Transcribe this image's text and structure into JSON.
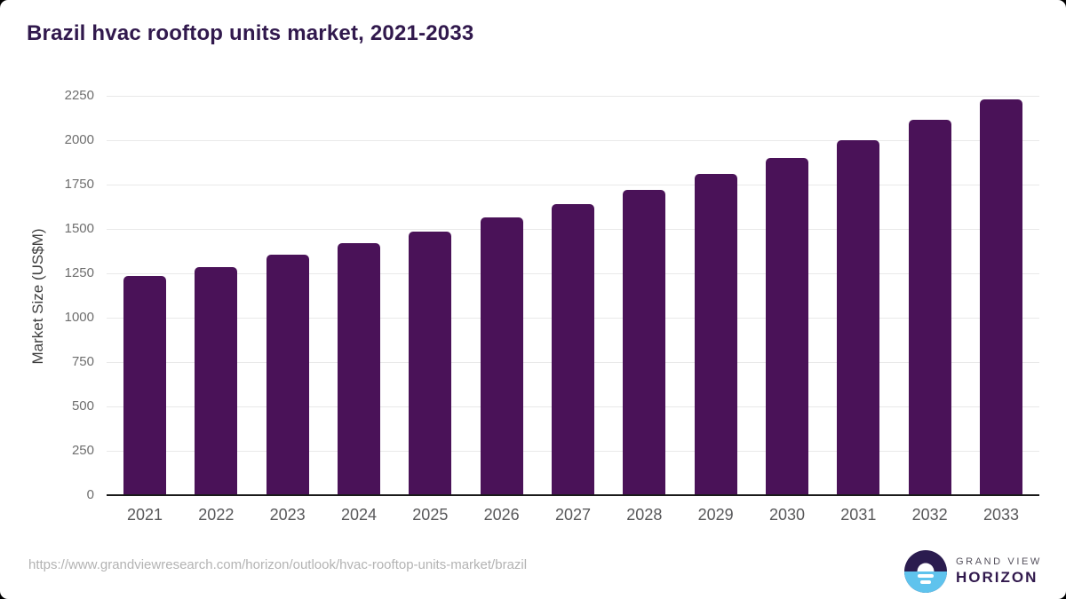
{
  "title": "Brazil hvac rooftop units market, 2021-2033",
  "footer": {
    "source_url": "https://www.grandviewresearch.com/horizon/outlook/hvac-rooftop-units-market/brazil",
    "brand_line1": "GRAND VIEW",
    "brand_line2": "HORIZON"
  },
  "colors": {
    "bar": "#4a1258",
    "title": "#31194d",
    "gridline": "#e9e9e9",
    "axis_line": "#1a1a1a",
    "tick_text": "#6e6e6e",
    "xlabel_text": "#58585a",
    "url_text": "#b3b3b3",
    "logo_purple": "#2b1c4f",
    "logo_blue": "#5fc3ed"
  },
  "chart_data": {
    "type": "bar",
    "title": "Brazil hvac rooftop units market, 2021-2033",
    "categories": [
      "2021",
      "2022",
      "2023",
      "2024",
      "2025",
      "2026",
      "2027",
      "2028",
      "2029",
      "2030",
      "2031",
      "2032",
      "2033"
    ],
    "values": [
      1235,
      1285,
      1355,
      1420,
      1485,
      1565,
      1640,
      1720,
      1810,
      1900,
      2000,
      2115,
      2230
    ],
    "xlabel": "",
    "ylabel": "Market Size (US$M)",
    "ylim": [
      0,
      2250
    ],
    "ytick_values": [
      0,
      250,
      500,
      750,
      1000,
      1250,
      1500,
      1750,
      2000,
      2250
    ],
    "grid": "horizontal",
    "legend": "none",
    "bar_color": "#4a1258"
  }
}
